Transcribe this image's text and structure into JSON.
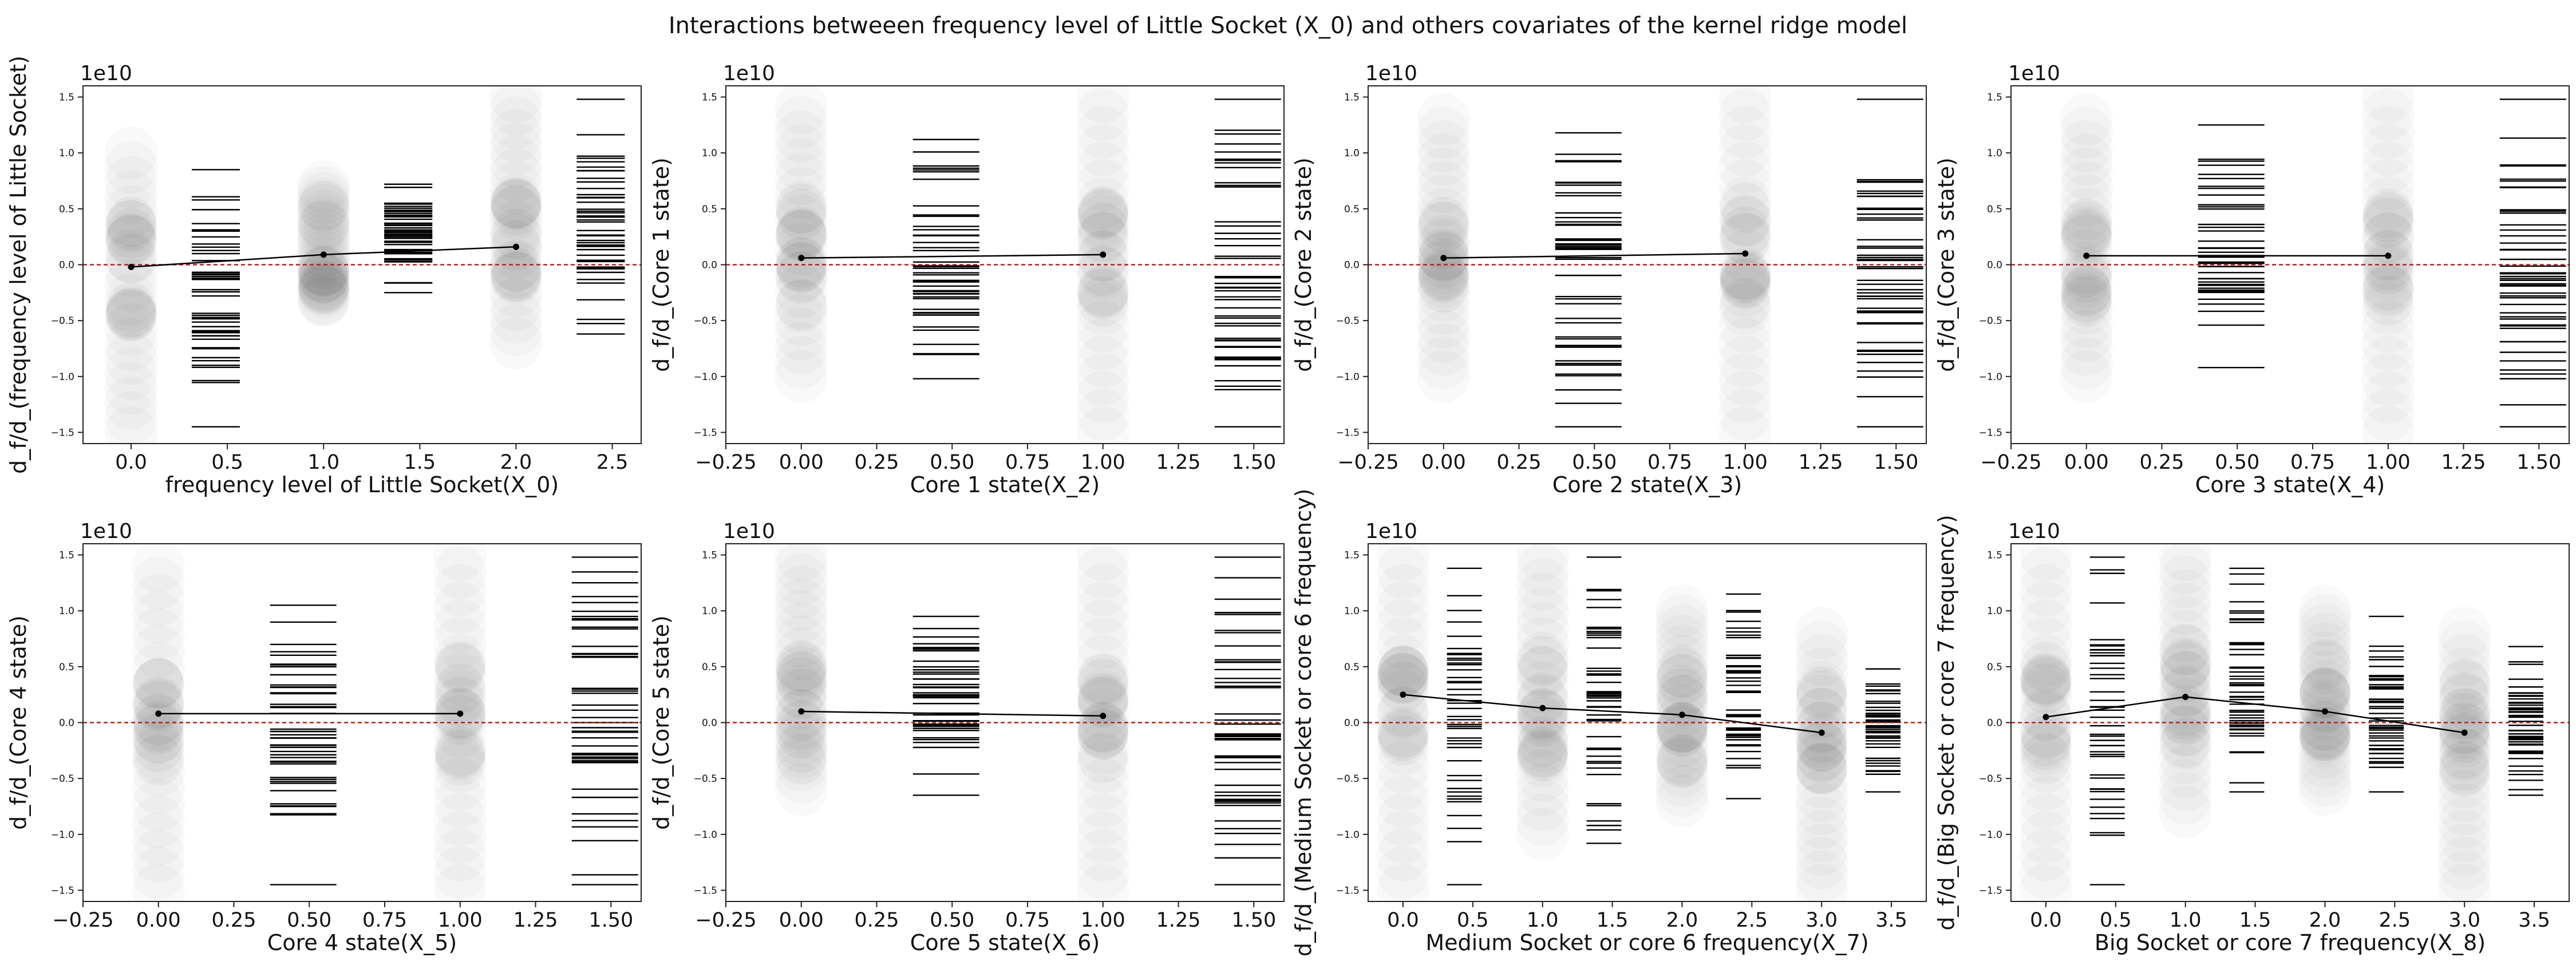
{
  "figure": {
    "title": "Interactions betweeen frequency level of Little Socket (X_0)  and others covariates of the kernel ridge model",
    "exponent_label": "1e10",
    "y_ticks": [
      "−1.5",
      "−1.0",
      "−0.5",
      "0.0",
      "0.5",
      "1.0",
      "1.5"
    ],
    "zero_line_color": "#b22222",
    "line_color": "#000000"
  },
  "chart_data": [
    {
      "type": "scatter",
      "title": "",
      "xlabel": "frequency level of Little Socket(X_0)",
      "ylabel": "d_f/d_(frequency level of Little Socket)",
      "xlim": [
        -0.25,
        2.65
      ],
      "ylim": [
        -1.6,
        1.6
      ],
      "y_scale_label": "1e10",
      "xticks": [
        0,
        0.5,
        1,
        1.5,
        2,
        2.5
      ],
      "xtick_labels": [
        "0.0",
        "0.5",
        "1.0",
        "1.5",
        "2.0",
        "2.5"
      ],
      "levels": [
        0,
        1,
        2
      ],
      "mean_line": [
        -0.02,
        0.09,
        0.16
      ],
      "scatter_spread": [
        [
          -1.5,
          1.0
        ],
        [
          -0.3,
          0.7
        ],
        [
          -0.7,
          1.5
        ]
      ],
      "histograms": [
        {
          "x": 0.38,
          "range": [
            -1.45,
            0.85
          ]
        },
        {
          "x": 1.38,
          "range": [
            -0.25,
            0.72
          ]
        },
        {
          "x": 2.38,
          "range": [
            -0.62,
            1.48
          ]
        }
      ]
    },
    {
      "type": "scatter",
      "title": "",
      "xlabel": "Core 1 state(X_2)",
      "ylabel": "d_f/d_(Core 1 state)",
      "xlim": [
        -0.25,
        1.6
      ],
      "ylim": [
        -1.6,
        1.6
      ],
      "y_scale_label": "1e10",
      "xticks": [
        -0.25,
        0,
        0.25,
        0.5,
        0.75,
        1,
        1.25,
        1.5
      ],
      "xtick_labels": [
        "−0.25",
        "0.00",
        "0.25",
        "0.50",
        "0.75",
        "1.00",
        "1.25",
        "1.50"
      ],
      "levels": [
        0,
        1
      ],
      "mean_line": [
        0.06,
        0.09
      ],
      "scatter_spread": [
        [
          -1.0,
          1.4
        ],
        [
          -1.5,
          1.5
        ]
      ],
      "histograms": [
        {
          "x": 0.42,
          "range": [
            -1.02,
            1.12
          ]
        },
        {
          "x": 1.42,
          "range": [
            -1.45,
            1.48
          ]
        }
      ]
    },
    {
      "type": "scatter",
      "title": "",
      "xlabel": "Core 2 state(X_3)",
      "ylabel": "d_f/d_(Core 2 state)",
      "xlim": [
        -0.25,
        1.6
      ],
      "ylim": [
        -1.6,
        1.6
      ],
      "y_scale_label": "1e10",
      "xticks": [
        -0.25,
        0,
        0.25,
        0.5,
        0.75,
        1,
        1.25,
        1.5
      ],
      "xtick_labels": [
        "−0.25",
        "0.00",
        "0.25",
        "0.50",
        "0.75",
        "1.00",
        "1.25",
        "1.50"
      ],
      "levels": [
        0,
        1
      ],
      "mean_line": [
        0.06,
        0.1
      ],
      "scatter_spread": [
        [
          -1.0,
          1.3
        ],
        [
          -1.5,
          1.5
        ]
      ],
      "histograms": [
        {
          "x": 0.42,
          "range": [
            -1.45,
            1.18
          ]
        },
        {
          "x": 1.42,
          "range": [
            -1.45,
            1.48
          ]
        }
      ]
    },
    {
      "type": "scatter",
      "title": "",
      "xlabel": "Core 3 state(X_4)",
      "ylabel": "d_f/d_(Core 3 state)",
      "xlim": [
        -0.25,
        1.6
      ],
      "ylim": [
        -1.6,
        1.6
      ],
      "y_scale_label": "1e10",
      "xticks": [
        -0.25,
        0,
        0.25,
        0.5,
        0.75,
        1,
        1.25,
        1.5
      ],
      "xtick_labels": [
        "−0.25",
        "0.00",
        "0.25",
        "0.50",
        "0.75",
        "1.00",
        "1.25",
        "1.50"
      ],
      "levels": [
        0,
        1
      ],
      "mean_line": [
        0.08,
        0.08
      ],
      "scatter_spread": [
        [
          -1.0,
          1.3
        ],
        [
          -1.5,
          1.5
        ]
      ],
      "histograms": [
        {
          "x": 0.42,
          "range": [
            -0.92,
            1.25
          ]
        },
        {
          "x": 1.42,
          "range": [
            -1.45,
            1.48
          ]
        }
      ]
    },
    {
      "type": "scatter",
      "title": "",
      "xlabel": "Core 4 state(X_5)",
      "ylabel": "d_f/d_(Core 4 state)",
      "xlim": [
        -0.25,
        1.6
      ],
      "ylim": [
        -1.6,
        1.6
      ],
      "y_scale_label": "1e10",
      "xticks": [
        -0.25,
        0,
        0.25,
        0.5,
        0.75,
        1,
        1.25,
        1.5
      ],
      "xtick_labels": [
        "−0.25",
        "0.00",
        "0.25",
        "0.50",
        "0.75",
        "1.00",
        "1.25",
        "1.50"
      ],
      "levels": [
        0,
        1
      ],
      "mean_line": [
        0.08,
        0.08
      ],
      "scatter_spread": [
        [
          -1.5,
          1.4
        ],
        [
          -1.5,
          1.5
        ]
      ],
      "histograms": [
        {
          "x": 0.42,
          "range": [
            -1.45,
            1.05
          ]
        },
        {
          "x": 1.42,
          "range": [
            -1.45,
            1.48
          ]
        }
      ]
    },
    {
      "type": "scatter",
      "title": "",
      "xlabel": "Core 5 state(X_6)",
      "ylabel": "d_f/d_(Core 5 state)",
      "xlim": [
        -0.25,
        1.6
      ],
      "ylim": [
        -1.6,
        1.6
      ],
      "y_scale_label": "1e10",
      "xticks": [
        -0.25,
        0,
        0.25,
        0.5,
        0.75,
        1,
        1.25,
        1.5
      ],
      "xtick_labels": [
        "−0.25",
        "0.00",
        "0.25",
        "0.50",
        "0.75",
        "1.00",
        "1.25",
        "1.50"
      ],
      "levels": [
        0,
        1
      ],
      "mean_line": [
        0.1,
        0.06
      ],
      "scatter_spread": [
        [
          -0.6,
          1.5
        ],
        [
          -1.5,
          1.5
        ]
      ],
      "histograms": [
        {
          "x": 0.42,
          "range": [
            -0.65,
            0.95
          ]
        },
        {
          "x": 1.42,
          "range": [
            -1.45,
            1.48
          ]
        }
      ]
    },
    {
      "type": "scatter",
      "title": "",
      "xlabel": "Medium Socket or core 6 frequency(X_7)",
      "ylabel": "d_f/d_(Medium Socket or core 6 frequency)",
      "xlim": [
        -0.25,
        3.75
      ],
      "ylim": [
        -1.6,
        1.6
      ],
      "y_scale_label": "1e10",
      "xticks": [
        0,
        0.5,
        1,
        1.5,
        2,
        2.5,
        3,
        3.5
      ],
      "xtick_labels": [
        "0.0",
        "0.5",
        "1.0",
        "1.5",
        "2.0",
        "2.5",
        "3.0",
        "3.5"
      ],
      "levels": [
        0,
        1,
        2,
        3
      ],
      "mean_line": [
        0.25,
        0.13,
        0.07,
        -0.09
      ],
      "scatter_spread": [
        [
          -1.5,
          1.5
        ],
        [
          -1.0,
          1.5
        ],
        [
          -0.7,
          1.0
        ],
        [
          -1.5,
          0.8
        ]
      ],
      "histograms": [
        {
          "x": 0.38,
          "range": [
            -1.45,
            1.38
          ]
        },
        {
          "x": 1.38,
          "range": [
            -1.08,
            1.48
          ]
        },
        {
          "x": 2.38,
          "range": [
            -0.68,
            1.15
          ]
        },
        {
          "x": 3.38,
          "range": [
            -0.62,
            0.48
          ]
        }
      ]
    },
    {
      "type": "scatter",
      "title": "",
      "xlabel": "Big Socket or core 7 frequency(X_8)",
      "ylabel": "d_f/d_(Big Socket or core 7 frequency)",
      "xlim": [
        -0.25,
        3.75
      ],
      "ylim": [
        -1.6,
        1.6
      ],
      "y_scale_label": "1e10",
      "xticks": [
        0,
        0.5,
        1,
        1.5,
        2,
        2.5,
        3,
        3.5
      ],
      "xtick_labels": [
        "0.0",
        "0.5",
        "1.0",
        "1.5",
        "2.0",
        "2.5",
        "3.0",
        "3.5"
      ],
      "levels": [
        0,
        1,
        2,
        3
      ],
      "mean_line": [
        0.05,
        0.23,
        0.1,
        -0.09
      ],
      "scatter_spread": [
        [
          -1.5,
          1.5
        ],
        [
          -0.8,
          1.5
        ],
        [
          -0.6,
          1.0
        ],
        [
          -1.5,
          0.8
        ]
      ],
      "histograms": [
        {
          "x": 0.38,
          "range": [
            -1.45,
            1.48
          ]
        },
        {
          "x": 1.38,
          "range": [
            -0.62,
            1.38
          ]
        },
        {
          "x": 2.38,
          "range": [
            -0.62,
            0.95
          ]
        },
        {
          "x": 3.38,
          "range": [
            -0.65,
            0.68
          ]
        }
      ]
    }
  ]
}
